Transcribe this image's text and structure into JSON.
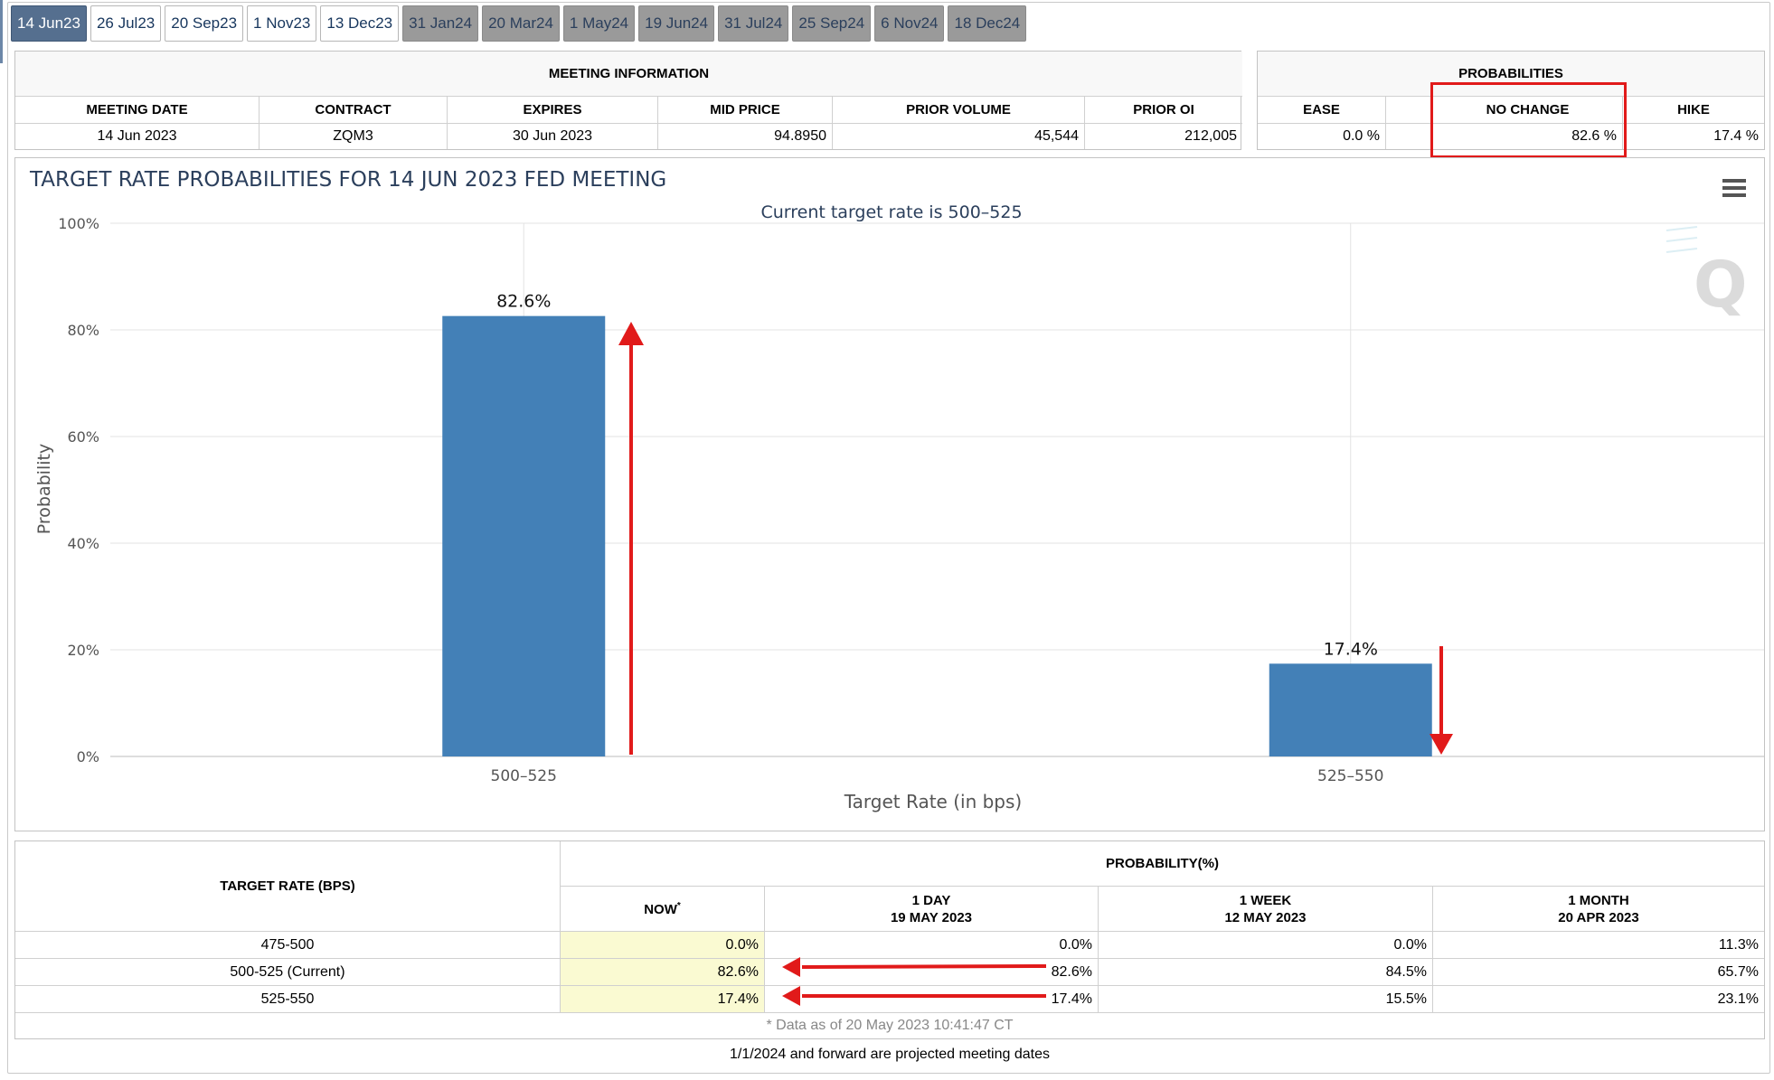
{
  "tabs": [
    "14 Jun23",
    "26 Jul23",
    "20 Sep23",
    "1 Nov23",
    "13 Dec23",
    "31 Jan24",
    "20 Mar24",
    "1 May24",
    "19 Jun24",
    "31 Jul24",
    "25 Sep24",
    "6 Nov24",
    "18 Dec24"
  ],
  "meeting_info": {
    "title": "MEETING INFORMATION",
    "headers": [
      "MEETING DATE",
      "CONTRACT",
      "EXPIRES",
      "MID PRICE",
      "PRIOR VOLUME",
      "PRIOR OI"
    ],
    "values": [
      "14 Jun 2023",
      "ZQM3",
      "30 Jun 2023",
      "94.8950",
      "45,544",
      "212,005"
    ]
  },
  "probabilities": {
    "title": "PROBABILITIES",
    "headers": [
      "EASE",
      "",
      "NO CHANGE",
      "HIKE"
    ],
    "values": [
      "0.0 %",
      "",
      "82.6 %",
      "17.4 %"
    ]
  },
  "chart_data": {
    "type": "bar",
    "title": "TARGET RATE PROBABILITIES FOR 14 JUN 2023 FED MEETING",
    "subtitle": "Current target rate is 500–525",
    "xlabel": "Target Rate (in bps)",
    "ylabel": "Probability",
    "categories": [
      "500–525",
      "525–550"
    ],
    "values": [
      82.6,
      17.4
    ],
    "data_labels": [
      "82.6%",
      "17.4%"
    ],
    "ylim": [
      0,
      100
    ],
    "yticks": [
      "0%",
      "20%",
      "40%",
      "60%",
      "80%",
      "100%"
    ],
    "grid": true,
    "bar_color": "#4380b7",
    "annotation_color": "#e11a1a",
    "menu_icon": "hamburger-menu-icon",
    "watermark_icon": "q-logo-icon"
  },
  "prob_table": {
    "rate_header": "TARGET RATE (BPS)",
    "prob_header": "PROBABILITY(%)",
    "col_headers": [
      {
        "line1": "NOW",
        "sup": "*",
        "line2": ""
      },
      {
        "line1": "1 DAY",
        "line2": "19 MAY 2023"
      },
      {
        "line1": "1 WEEK",
        "line2": "12 MAY 2023"
      },
      {
        "line1": "1 MONTH",
        "line2": "20 APR 2023"
      }
    ],
    "rows": [
      {
        "rate": "475-500",
        "now": "0.0%",
        "day": "0.0%",
        "week": "0.0%",
        "month": "11.3%"
      },
      {
        "rate": "500-525 (Current)",
        "now": "82.6%",
        "day": "82.6%",
        "week": "84.5%",
        "month": "65.7%"
      },
      {
        "rate": "525-550",
        "now": "17.4%",
        "day": "17.4%",
        "week": "15.5%",
        "month": "23.1%"
      }
    ],
    "data_note": "* Data as of 20 May 2023 10:41:47 CT"
  },
  "footer": "1/1/2024 and forward are projected meeting dates"
}
